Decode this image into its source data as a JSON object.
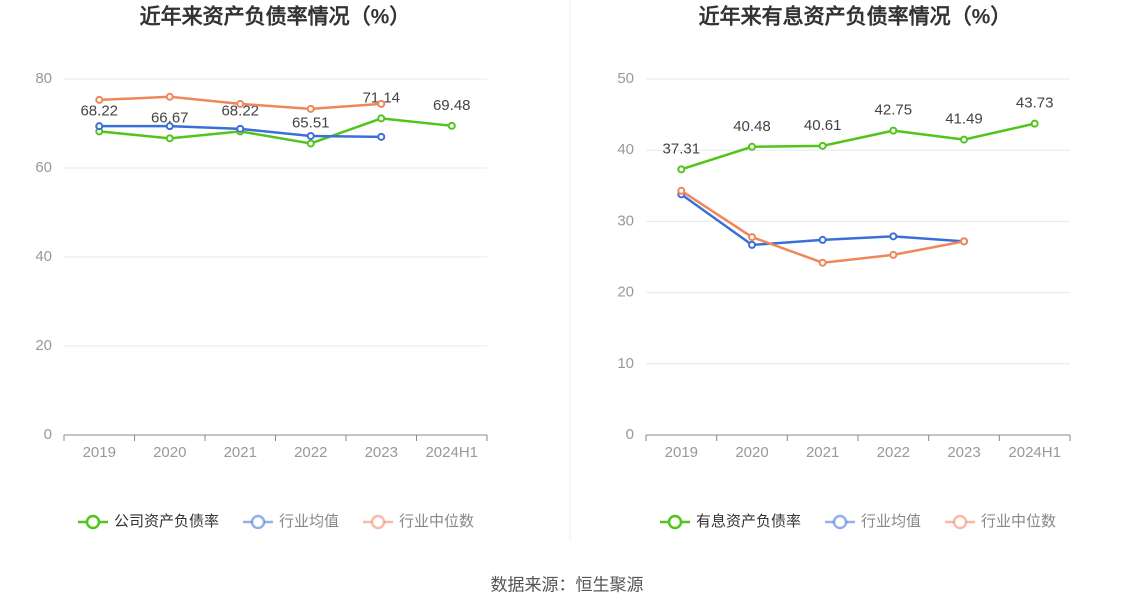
{
  "chart_data": [
    {
      "type": "line",
      "title": "近年来资产负债率情况（%）",
      "categories": [
        "2019",
        "2020",
        "2021",
        "2022",
        "2023",
        "2024H1"
      ],
      "ylim": [
        0,
        80
      ],
      "yticks": [
        0,
        20,
        40,
        60,
        80
      ],
      "grid": true,
      "legend": "bottom",
      "series": [
        {
          "name": "公司资产负债率",
          "color": "#52c41a",
          "values": [
            68.22,
            66.67,
            68.22,
            65.51,
            71.14,
            69.48
          ],
          "data_labels": true
        },
        {
          "name": "行业均值",
          "color": "#3a6fd8",
          "values": [
            69.4,
            69.4,
            68.8,
            67.2,
            67.0,
            null
          ]
        },
        {
          "name": "行业中位数",
          "color": "#f0875a",
          "values": [
            75.3,
            76.0,
            74.4,
            73.3,
            74.4,
            null
          ]
        }
      ]
    },
    {
      "type": "line",
      "title": "近年来有息资产负债率情况（%）",
      "categories": [
        "2019",
        "2020",
        "2021",
        "2022",
        "2023",
        "2024H1"
      ],
      "ylim": [
        0,
        50
      ],
      "yticks": [
        0,
        10,
        20,
        30,
        40,
        50
      ],
      "grid": true,
      "legend": "bottom",
      "series": [
        {
          "name": "有息资产负债率",
          "color": "#52c41a",
          "values": [
            37.31,
            40.48,
            40.61,
            42.75,
            41.49,
            43.73
          ],
          "data_labels": true
        },
        {
          "name": "行业均值",
          "color": "#3a6fd8",
          "values": [
            33.8,
            26.7,
            27.4,
            27.9,
            27.2,
            null
          ]
        },
        {
          "name": "行业中位数",
          "color": "#f0875a",
          "values": [
            34.3,
            27.8,
            24.2,
            25.3,
            27.2,
            null
          ]
        }
      ]
    }
  ],
  "source": "数据来源：恒生聚源"
}
